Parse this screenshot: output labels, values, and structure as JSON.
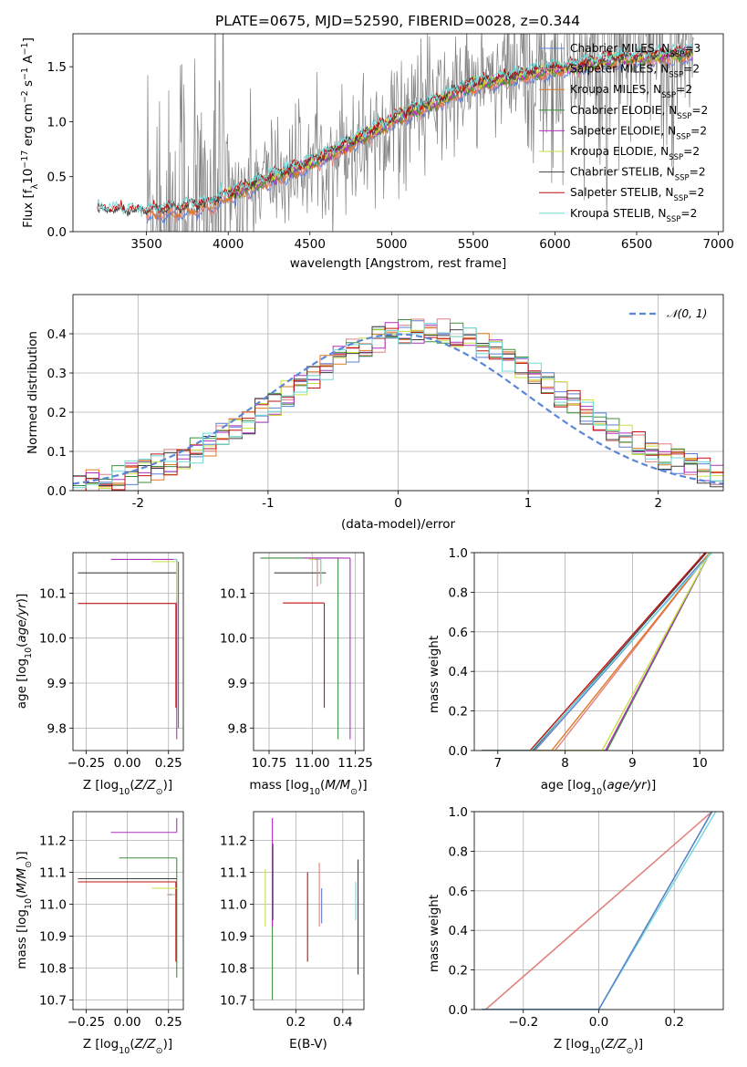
{
  "figure_title": "PLATE=0675, MJD=52590, FIBERID=0028, z=0.344",
  "colors": {
    "Chabrier MILES": "#5b7fd6",
    "Salpeter MILES": "#e08080",
    "Kroupa MILES": "#e07820",
    "Chabrier ELODIE": "#3f8f3f",
    "Salpeter ELODIE": "#b030c0",
    "Kroupa ELODIE": "#c8e040",
    "Chabrier STELIB": "#404040",
    "Salpeter STELIB": "#c01010",
    "Kroupa STELIB": "#70d8d8",
    "data": "#808080",
    "normal": "#5b87d8"
  },
  "chart_data": [
    {
      "id": "spectrum",
      "type": "line",
      "title": "PLATE=0675, MJD=52590, FIBERID=0028, z=0.344",
      "xlabel": "wavelength [Angstrom, rest frame]",
      "ylabel": "Flux [fλ10⁻¹⁷ erg cm⁻² s⁻¹ A⁻¹]",
      "xlim": [
        3050,
        7030
      ],
      "ylim": [
        0,
        1.8
      ],
      "xticks": [
        3500,
        4000,
        4500,
        5000,
        5500,
        6000,
        6500,
        7000
      ],
      "yticks": [
        0.0,
        0.5,
        1.0,
        1.5
      ],
      "legend_position": "top-right",
      "legend": [
        {
          "label": "Chabrier MILES, N",
          "sub": "SSP",
          "tail": "=3"
        },
        {
          "label": "Salpeter MILES, N",
          "sub": "SSP",
          "tail": "=2"
        },
        {
          "label": "Kroupa MILES, N",
          "sub": "SSP",
          "tail": "=2"
        },
        {
          "label": "Chabrier ELODIE, N",
          "sub": "SSP",
          "tail": "=2"
        },
        {
          "label": "Salpeter ELODIE, N",
          "sub": "SSP",
          "tail": "=2"
        },
        {
          "label": "Kroupa ELODIE, N",
          "sub": "SSP",
          "tail": "=2"
        },
        {
          "label": "Chabrier STELIB, N",
          "sub": "SSP",
          "tail": "=2"
        },
        {
          "label": "Salpeter STELIB, N",
          "sub": "SSP",
          "tail": "=2"
        },
        {
          "label": "Kroupa STELIB, N",
          "sub": "SSP",
          "tail": "=2"
        }
      ],
      "model_continuum": [
        [
          3200,
          0.18
        ],
        [
          3500,
          0.17
        ],
        [
          3700,
          0.2
        ],
        [
          3900,
          0.25
        ],
        [
          4000,
          0.33
        ],
        [
          4200,
          0.45
        ],
        [
          4500,
          0.62
        ],
        [
          4750,
          0.8
        ],
        [
          4900,
          0.92
        ],
        [
          5100,
          1.08
        ],
        [
          5300,
          1.2
        ],
        [
          5500,
          1.33
        ],
        [
          5800,
          1.42
        ],
        [
          6100,
          1.5
        ],
        [
          6400,
          1.57
        ],
        [
          6700,
          1.6
        ],
        [
          6850,
          1.62
        ]
      ],
      "series": [
        "Chabrier MILES",
        "Salpeter MILES",
        "Kroupa MILES",
        "Chabrier ELODIE",
        "Salpeter ELODIE",
        "Kroupa ELODIE",
        "Chabrier STELIB",
        "Salpeter STELIB",
        "Kroupa STELIB"
      ]
    },
    {
      "id": "residuals",
      "type": "line",
      "xlabel": "(data-model)/error",
      "ylabel": "Normed distribution",
      "xlim": [
        -2.5,
        2.5
      ],
      "ylim": [
        0,
        0.5
      ],
      "xticks": [
        -2,
        -1,
        0,
        1,
        2
      ],
      "yticks": [
        0.0,
        0.1,
        0.2,
        0.3,
        0.4
      ],
      "legend_position": "top-right",
      "normal_label": "𝒩(0, 1)",
      "grid": true
    },
    {
      "id": "age_vs_Z",
      "type": "scatter",
      "xlabel": "Z [log₁₀(Z/Z⊙)]",
      "ylabel": "age  [log₁₀(age/yr)]",
      "xlim": [
        -0.33,
        0.34
      ],
      "ylim": [
        9.75,
        10.19
      ],
      "xticks": [
        -0.25,
        0.0,
        0.25
      ],
      "yticks": [
        9.8,
        9.9,
        10.0,
        10.1
      ],
      "xtick_labels": [
        "−0.25",
        "0.00",
        "0.25"
      ],
      "points": [
        {
          "s": "Chabrier STELIB",
          "x": 0.3,
          "y": 10.145,
          "xl": -0.3,
          "yl": 10.145
        },
        {
          "s": "Salpeter ELODIE",
          "x": 0.3,
          "y": 10.175,
          "xl": -0.1,
          "yl": 9.775
        },
        {
          "s": "Kroupa ELODIE",
          "x": 0.3,
          "y": 10.17,
          "xl": 0.15,
          "yl": 10.08
        },
        {
          "s": "Chabrier ELODIE",
          "x": 0.31,
          "y": 10.17,
          "xl": 0.31,
          "yl": 9.8
        },
        {
          "s": "Salpeter STELIB",
          "x": 0.295,
          "y": 10.077,
          "xl": -0.3,
          "yl": 9.845
        },
        {
          "s": "Kroupa STELIB",
          "x": 0.3,
          "y": 10.175,
          "xl": 0.28,
          "yl": 10.17
        }
      ]
    },
    {
      "id": "age_vs_mass",
      "type": "scatter",
      "xlabel": "mass [log₁₀(M/M⊙)]",
      "xlim": [
        10.66,
        11.3
      ],
      "ylim": [
        9.75,
        10.19
      ],
      "xticks": [
        10.75,
        11.0,
        11.25
      ],
      "yticks": [
        9.8,
        9.9,
        10.0,
        10.1
      ],
      "xtick_labels": [
        "10.75",
        "11.00",
        "11.25"
      ],
      "points": [
        {
          "s": "Chabrier ELODIE",
          "x": 11.15,
          "y": 10.178,
          "xl": 10.7,
          "yl": 9.775
        },
        {
          "s": "Salpeter ELODIE",
          "x": 11.22,
          "y": 10.178,
          "xl": 10.95,
          "yl": 9.775
        },
        {
          "s": "Chabrier STELIB",
          "x": 11.08,
          "y": 10.145,
          "xl": 10.78,
          "yl": 10.145
        },
        {
          "s": "Salpeter STELIB",
          "x": 11.07,
          "y": 10.078,
          "xl": 10.83,
          "yl": 9.845
        },
        {
          "s": "Kroupa ELODIE",
          "x": 11.05,
          "y": 10.175,
          "xl": 10.98,
          "yl": 10.12
        },
        {
          "s": "Kroupa STELIB",
          "x": 11.05,
          "y": 10.175,
          "xl": 11.02,
          "yl": 10.12
        },
        {
          "s": "Salpeter MILES",
          "x": 11.03,
          "y": 10.175,
          "xl": 11.02,
          "yl": 10.115
        }
      ]
    },
    {
      "id": "age_cumulative",
      "type": "line",
      "xlabel": "age  [log₁₀(age/yr)]",
      "ylabel": "mass weight",
      "xlim": [
        6.65,
        10.35
      ],
      "ylim": [
        0,
        1
      ],
      "xticks": [
        7,
        8,
        9,
        10
      ],
      "yticks": [
        0.0,
        0.2,
        0.4,
        0.6,
        0.8,
        1.0
      ],
      "lines": [
        {
          "s": "Chabrier MILES",
          "x0": 7.55,
          "x1": 10.15
        },
        {
          "s": "Salpeter MILES",
          "x0": 7.85,
          "x1": 10.15
        },
        {
          "s": "Kroupa MILES",
          "x0": 7.8,
          "x1": 10.15
        },
        {
          "s": "Chabrier ELODIE",
          "x0": 8.62,
          "x1": 10.15
        },
        {
          "s": "Salpeter ELODIE",
          "x0": 8.6,
          "x1": 10.15
        },
        {
          "s": "Kroupa ELODIE",
          "x0": 8.55,
          "x1": 10.15
        },
        {
          "s": "Chabrier STELIB",
          "x0": 7.52,
          "x1": 10.1
        },
        {
          "s": "Salpeter STELIB",
          "x0": 7.48,
          "x1": 10.08
        },
        {
          "s": "Kroupa STELIB",
          "x0": 7.5,
          "x1": 10.18
        }
      ],
      "grid": true
    },
    {
      "id": "mass_vs_Z",
      "type": "scatter",
      "xlabel": "Z [log₁₀(Z/Z⊙)]",
      "ylabel": "mass [log₁₀(M/M⊙)]",
      "xlim": [
        -0.33,
        0.34
      ],
      "ylim": [
        10.67,
        11.29
      ],
      "xticks": [
        -0.25,
        0.0,
        0.25
      ],
      "yticks": [
        10.7,
        10.8,
        10.9,
        11.0,
        11.1,
        11.2
      ],
      "xtick_labels": [
        "−0.25",
        "0.00",
        "0.25"
      ],
      "points": [
        {
          "s": "Salpeter ELODIE",
          "x": 0.3,
          "y": 11.225,
          "xl": -0.1,
          "yl": 11.27
        },
        {
          "s": "Chabrier ELODIE",
          "x": 0.3,
          "y": 11.145,
          "xl": -0.05,
          "yl": 10.77
        },
        {
          "s": "Salpeter STELIB",
          "x": 0.295,
          "y": 11.07,
          "xl": -0.3,
          "yl": 10.82
        },
        {
          "s": "Chabrier STELIB",
          "x": 0.3,
          "y": 11.08,
          "xl": -0.3,
          "yl": 11.08
        },
        {
          "s": "Kroupa ELODIE",
          "x": 0.3,
          "y": 11.05,
          "xl": 0.15,
          "yl": 11.05
        },
        {
          "s": "Kroupa STELIB",
          "x": 0.29,
          "y": 11.03,
          "xl": 0.24,
          "yl": 11.03
        },
        {
          "s": "Kroupa MILES",
          "x": 0.27,
          "y": 11.03,
          "xl": 0.25,
          "yl": 11.03
        }
      ]
    },
    {
      "id": "mass_vs_EBV",
      "type": "scatter",
      "xlabel": "E(B-V)",
      "xlim": [
        0.02,
        0.49
      ],
      "ylim": [
        10.67,
        11.29
      ],
      "xticks": [
        0.2,
        0.4
      ],
      "yticks": [
        10.7,
        10.8,
        10.9,
        11.0,
        11.1,
        11.2
      ],
      "points": [
        {
          "s": "Kroupa ELODIE",
          "x": 0.07,
          "y": 11.0,
          "yl0": 10.93,
          "yl1": 11.11
        },
        {
          "s": "Chabrier ELODIE",
          "x": 0.1,
          "y": 10.95,
          "yl0": 10.7,
          "yl1": 11.18
        },
        {
          "s": "Salpeter ELODIE",
          "x": 0.1,
          "y": 11.2,
          "yl0": 10.93,
          "yl1": 11.27
        },
        {
          "s": "Chabrier STELIB",
          "x": 0.102,
          "y": 11.1,
          "yl0": 10.95,
          "yl1": 11.19
        },
        {
          "s": "Salpeter STELIB",
          "x": 0.25,
          "y": 10.95,
          "yl0": 10.82,
          "yl1": 11.1
        },
        {
          "s": "Salpeter MILES",
          "x": 0.3,
          "y": 11.0,
          "yl0": 10.93,
          "yl1": 11.13
        },
        {
          "s": "Chabrier MILES",
          "x": 0.31,
          "y": 10.98,
          "yl0": 10.94,
          "yl1": 11.05
        },
        {
          "s": "Kroupa STELIB",
          "x": 0.455,
          "y": 11.0,
          "yl0": 10.95,
          "yl1": 11.07
        },
        {
          "s": "Chabrier STELIB",
          "x": 0.465,
          "y": 10.95,
          "yl0": 10.78,
          "yl1": 11.14
        }
      ]
    },
    {
      "id": "Z_cumulative",
      "type": "line",
      "xlabel": "Z [log₁₀(Z/Z⊙)]",
      "ylabel": "mass weight",
      "xlim": [
        -0.33,
        0.33
      ],
      "ylim": [
        0,
        1
      ],
      "xticks": [
        -0.2,
        0.0,
        0.2
      ],
      "xtick_labels": [
        "−0.2",
        "0.0",
        "0.2"
      ],
      "yticks": [
        0.0,
        0.2,
        0.4,
        0.6,
        0.8,
        1.0
      ],
      "lines": [
        {
          "s": "Kroupa MILES",
          "x0": -0.3,
          "x1": 0.3
        },
        {
          "s": "Salpeter MILES",
          "x0": -0.3,
          "x1": 0.3
        },
        {
          "s": "Chabrier ELODIE",
          "x0": 0.0,
          "x1": 0.3
        },
        {
          "s": "Kroupa STELIB",
          "x0": 0.0,
          "x1": 0.31
        },
        {
          "s": "Chabrier MILES",
          "x0": 0.0,
          "x1": 0.3
        }
      ],
      "grid": true
    }
  ]
}
